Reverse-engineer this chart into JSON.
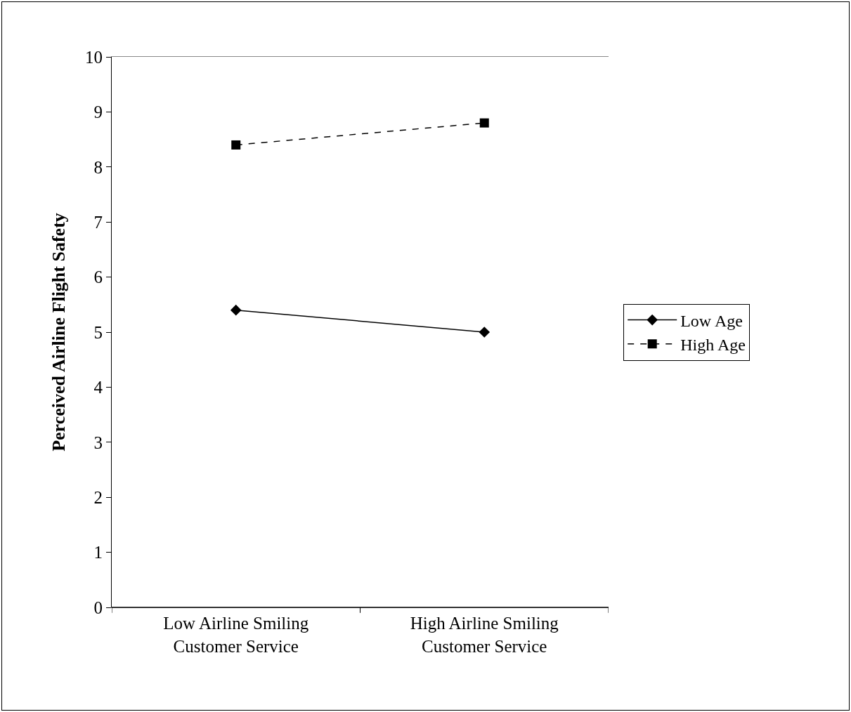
{
  "chart_data": {
    "type": "line",
    "ylabel": "Perceived Airline Flight Safety",
    "categories": [
      "Low Airline Smiling\nCustomer Service",
      "High Airline Smiling\nCustomer Service"
    ],
    "series": [
      {
        "name": "Low Age",
        "color": "#000000",
        "values": [
          5.4,
          5.0
        ],
        "marker": "diamond",
        "line_style": "solid"
      },
      {
        "name": "High Age",
        "color": "#000000",
        "values": [
          8.4,
          8.8
        ],
        "marker": "square",
        "line_style": "dashed"
      }
    ],
    "ylim": [
      0,
      10
    ],
    "yticks": [
      0,
      1,
      2,
      3,
      4,
      5,
      6,
      7,
      8,
      9,
      10
    ],
    "grid": false,
    "legend": "right"
  }
}
